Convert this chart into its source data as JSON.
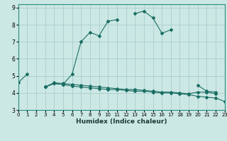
{
  "xlabel": "Humidex (Indice chaleur)",
  "bg_color": "#cce8e4",
  "grid_color": "#aacccc",
  "line_color": "#1a6e64",
  "x_ticks": [
    0,
    1,
    2,
    3,
    4,
    5,
    6,
    7,
    8,
    9,
    10,
    11,
    12,
    13,
    14,
    15,
    16,
    17,
    18,
    19,
    20,
    21,
    22,
    23
  ],
  "xlim": [
    0,
    23
  ],
  "ylim": [
    3.0,
    9.2
  ],
  "y_ticks": [
    3,
    4,
    5,
    6,
    7,
    8,
    9
  ],
  "series2_x": [
    3,
    4,
    5,
    6,
    7,
    8,
    9,
    10,
    11,
    12,
    13,
    14,
    15,
    16,
    17,
    18,
    19,
    20,
    21,
    22,
    23
  ],
  "series2_y": [
    4.35,
    4.55,
    4.5,
    4.4,
    4.35,
    4.3,
    4.25,
    4.2,
    4.2,
    4.15,
    4.1,
    4.1,
    4.05,
    4.0,
    4.0,
    3.95,
    3.9,
    3.8,
    3.75,
    3.7,
    3.5
  ],
  "series3_x": [
    3,
    4,
    5,
    6,
    7,
    8,
    9,
    10,
    11,
    12,
    13,
    14,
    15,
    16,
    17,
    18,
    19,
    20,
    21,
    22
  ],
  "series3_y": [
    4.35,
    4.6,
    4.55,
    4.5,
    4.45,
    4.4,
    4.35,
    4.3,
    4.25,
    4.2,
    4.2,
    4.15,
    4.1,
    4.05,
    4.05,
    4.0,
    3.95,
    4.05,
    4.05,
    3.95
  ],
  "series1_segments": [
    {
      "x": [
        0,
        1
      ],
      "y": [
        4.6,
        5.1
      ]
    },
    {
      "x": [
        3,
        4,
        5,
        6,
        7,
        8,
        9,
        10,
        11
      ],
      "y": [
        4.35,
        4.55,
        4.5,
        5.1,
        7.0,
        7.55,
        7.35,
        8.2,
        8.3
      ]
    },
    {
      "x": [
        13,
        14,
        15,
        16,
        17
      ],
      "y": [
        8.65,
        8.8,
        8.4,
        7.5,
        7.7
      ]
    },
    {
      "x": [
        20,
        21,
        22
      ],
      "y": [
        4.45,
        4.1,
        4.05
      ]
    }
  ]
}
